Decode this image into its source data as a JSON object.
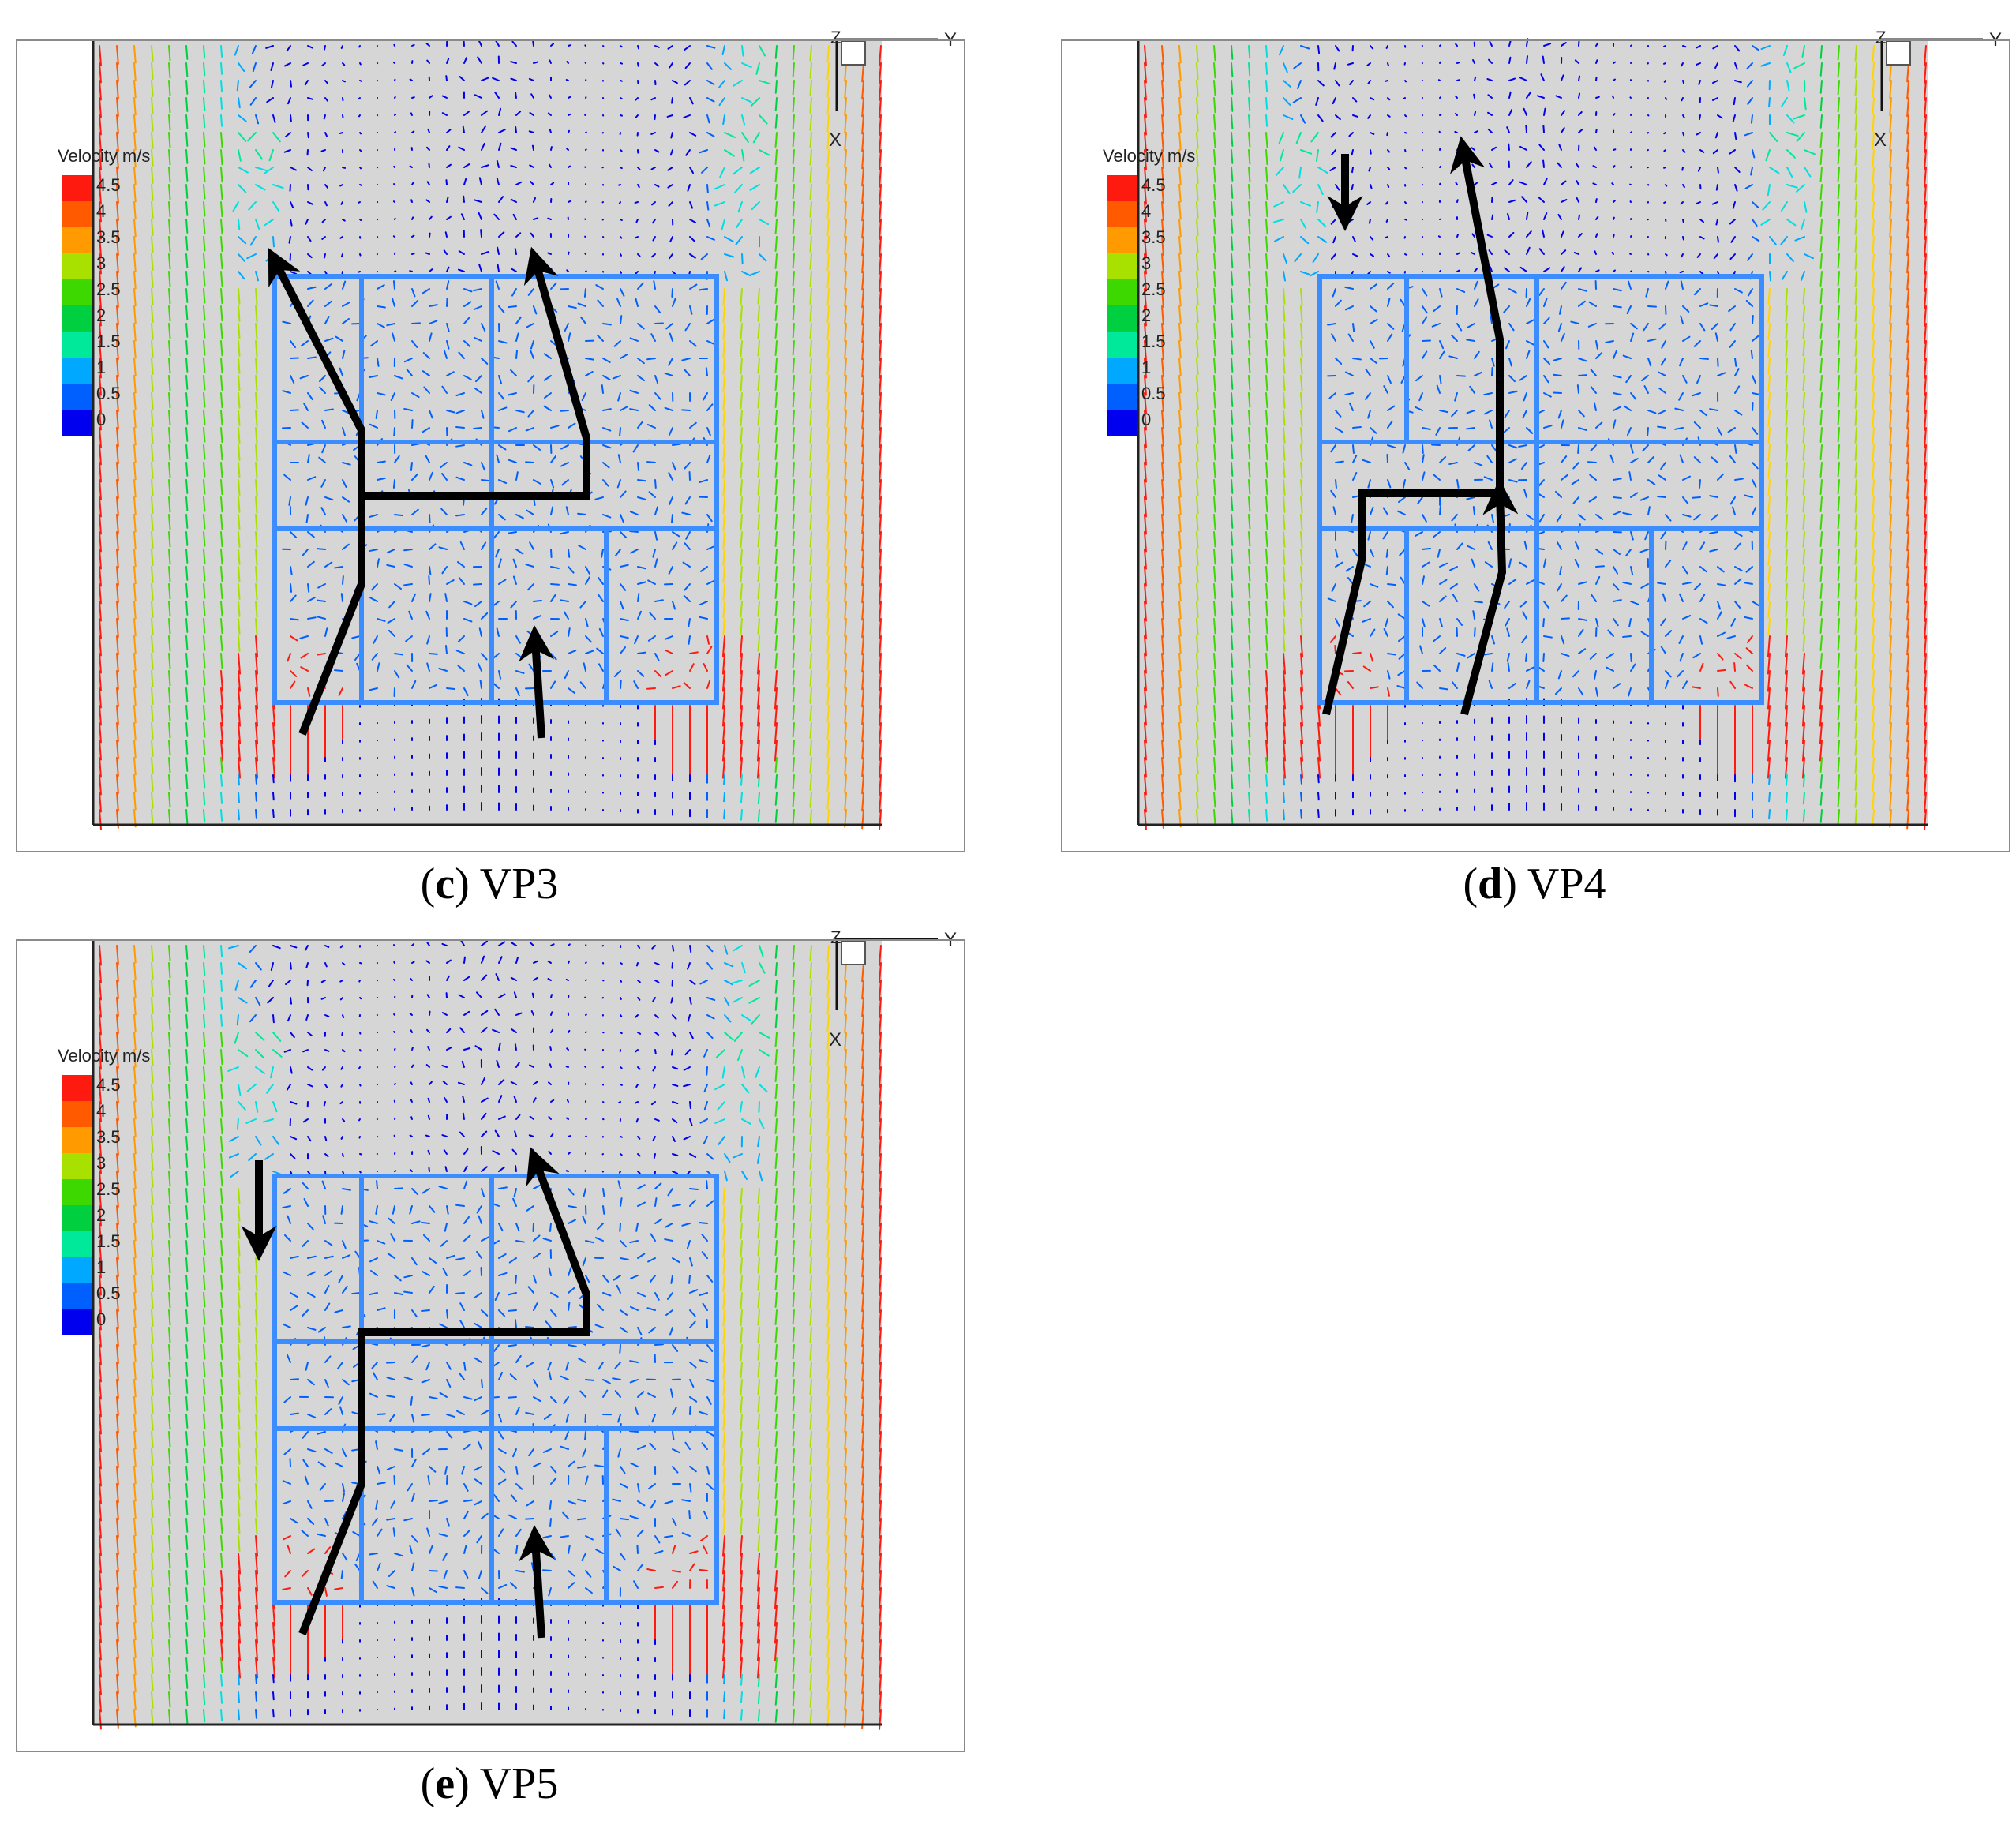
{
  "colors": {
    "frame": "#8a8a8a",
    "background": "#d6d6d6",
    "building_interior": "#c9c9c9",
    "path_arrow": "#000000",
    "scale": [
      "#0000ee",
      "#0060ff",
      "#00a8ff",
      "#00e0e0",
      "#00e89a",
      "#00d040",
      "#3cd800",
      "#a8e000",
      "#ffd400",
      "#ff9a00",
      "#ff5a00",
      "#ff1a10"
    ]
  },
  "legend": {
    "title": "Velocity m/s",
    "ticks": [
      "4.5",
      "4",
      "3.5",
      "3",
      "2.5",
      "2",
      "1.5",
      "1",
      "0.5",
      "0"
    ]
  },
  "axes": {
    "z": "Z",
    "y": "Y",
    "x": "X"
  },
  "panels": [
    {
      "id": "c",
      "letter": "c",
      "label": "VP3",
      "icon": "flow-path-arrows"
    },
    {
      "id": "d",
      "letter": "d",
      "label": "VP4",
      "icon": "flow-path-arrows"
    },
    {
      "id": "e",
      "letter": "e",
      "label": "VP5",
      "icon": "flow-path-arrows"
    }
  ]
}
